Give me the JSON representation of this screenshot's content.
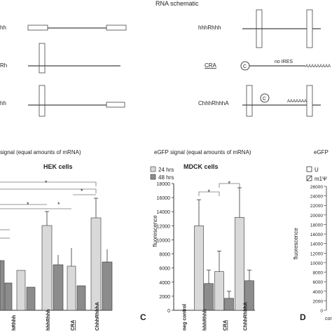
{
  "schematic": {
    "title": "RNA schematic",
    "left_labels": [
      "hh",
      "Rh",
      "hh"
    ],
    "right_labels": [
      "hhhRhhh",
      "CRA",
      "ChhhRhhhA"
    ],
    "no_ires": "no IRES",
    "cap_symbol": "C",
    "polya": "AAAAAAAAA"
  },
  "left_panel": {
    "title": "signal (equal amounts of mRNA)",
    "subtitle": "HEK cells",
    "categories": [
      "hRhhh",
      "hhhRhhh",
      "CRA",
      "ChhhRhhhA"
    ]
  },
  "right_stub": {
    "title": "eGFP",
    "legend": [
      "U",
      "m1Ψ"
    ],
    "yticks": [
      "26000",
      "24000",
      "22000",
      "20000",
      "18000",
      "16000",
      "14000",
      "12000",
      "10000",
      "8000",
      "6000",
      "4000",
      "2000",
      "0"
    ],
    "ylabel": "fluorescence",
    "panel_letter": "D",
    "cut_label": "con"
  },
  "chart_data": {
    "type": "bar",
    "title": "eGFP signal (equal amounts of mRNA)",
    "subtitle": "MDCK cells",
    "panel_letter": "C",
    "ylabel": "fluorescence",
    "ylim": [
      0,
      18000
    ],
    "yticks": [
      0,
      2000,
      4000,
      6000,
      8000,
      10000,
      12000,
      14000,
      16000,
      18000
    ],
    "categories": [
      "neg control",
      "hhhRhhh",
      "CRA",
      "ChhhRhhhA"
    ],
    "series": [
      {
        "name": "24 hrs",
        "color": "#d9d9d9",
        "values": [
          0,
          12000,
          5500,
          13200
        ],
        "errors": [
          0,
          3700,
          2900,
          4200
        ]
      },
      {
        "name": "48 hrs",
        "color": "#8c8c8c",
        "values": [
          0,
          3800,
          1700,
          4200
        ],
        "errors": [
          0,
          1900,
          1000,
          1500
        ]
      }
    ],
    "significance": [
      "*",
      "*"
    ]
  }
}
